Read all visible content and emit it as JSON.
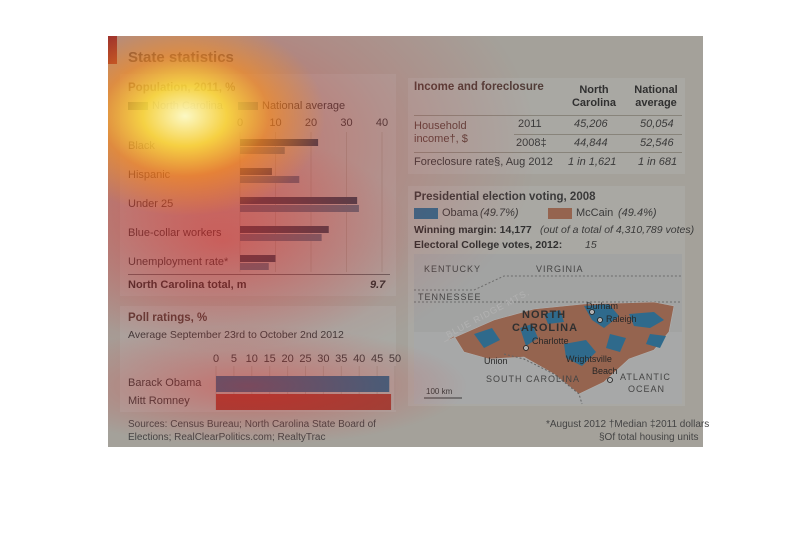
{
  "title": "State statistics",
  "population": {
    "title": "Population, 2011, %",
    "legend": [
      "North Carolina",
      "National average"
    ],
    "colors": {
      "north_carolina": "#1b4660",
      "national": "#5a8ea8"
    },
    "rows": [
      {
        "label": "Black"
      },
      {
        "label": "Hispanic"
      },
      {
        "label": "Under 25"
      },
      {
        "label": "Blue-collar workers"
      },
      {
        "label": "Unemployment rate*"
      }
    ],
    "total_label": "North Carolina total, m",
    "total_value": "9.7"
  },
  "poll": {
    "title": "Poll ratings, %",
    "subtitle": "Average September 23rd to October 2nd 2012",
    "rows": [
      {
        "label": "Barack Obama"
      },
      {
        "label": "Mitt Romney"
      }
    ],
    "colors": {
      "obama": "#1f7fb5",
      "romney": "#d8412f"
    }
  },
  "income": {
    "title": "Income and foreclosure",
    "col_nc": "North Carolina",
    "col_nat": "National average",
    "household_label": "Household income†, $",
    "rows": [
      {
        "year": "2011",
        "nc": "45,206",
        "nat": "50,054"
      },
      {
        "year": "2008‡",
        "nc": "44,844",
        "nat": "52,546"
      }
    ],
    "foreclosure_label": "Foreclosure rate§, Aug 2012",
    "foreclosure_nc": "1 in 1,621",
    "foreclosure_nat": "1 in 681"
  },
  "election": {
    "title": "Presidential election voting, 2008",
    "obama_label": "Obama",
    "obama_pct": "(49.7%)",
    "mccain_label": "McCain",
    "mccain_pct": "(49.4%)",
    "colors": {
      "obama": "#1f86bf",
      "mccain": "#cf7a56"
    },
    "margin_label": "Winning margin: 14,177",
    "margin_detail": "(out of a total of 4,310,789 votes)",
    "ec_label": "Electoral College votes, 2012:",
    "ec_value": "15"
  },
  "map_labels": {
    "kentucky": "KENTUCKY",
    "virginia": "VIRGINIA",
    "tennessee": "TENNESSEE",
    "blue_ridge": "BLUE RIDGE MTS.",
    "north": "NORTH",
    "carolina": "CAROLINA",
    "durham": "Durham",
    "raleigh": "Raleigh",
    "charlotte": "Charlotte",
    "union": "Union",
    "wrightsville": "Wrightsville",
    "beach": "Beach",
    "south_carolina": "SOUTH CAROLINA",
    "atlantic": "ATLANTIC",
    "ocean": "OCEAN",
    "scale": "100 km"
  },
  "sources": "Sources: Census Bureau; North Carolina State Board of Elections; RealClearPolitics.com; RealtyTrac",
  "footnote1": "*August 2012 †Median ‡2011 dollars",
  "footnote2": "§Of total housing units",
  "chart_data": [
    {
      "type": "bar",
      "title": "Population, 2011, %",
      "categories": [
        "Black",
        "Hispanic",
        "Under 25",
        "Blue-collar workers",
        "Unemployment rate*"
      ],
      "series": [
        {
          "name": "North Carolina",
          "values": [
            22,
            9,
            33,
            25,
            10
          ]
        },
        {
          "name": "National average",
          "values": [
            12.6,
            16.7,
            33.5,
            23,
            8.1
          ]
        }
      ],
      "xlim": [
        0,
        40
      ],
      "xticks": [
        0,
        10,
        20,
        30,
        40
      ]
    },
    {
      "type": "bar",
      "title": "Poll ratings, %",
      "subtitle": "Average September 23rd to October 2nd 2012",
      "categories": [
        "Barack Obama",
        "Mitt Romney"
      ],
      "values": [
        48.4,
        48.9
      ],
      "xlim": [
        0,
        50
      ],
      "xticks": [
        0,
        5,
        10,
        15,
        20,
        25,
        30,
        35,
        40,
        45,
        50
      ]
    }
  ]
}
